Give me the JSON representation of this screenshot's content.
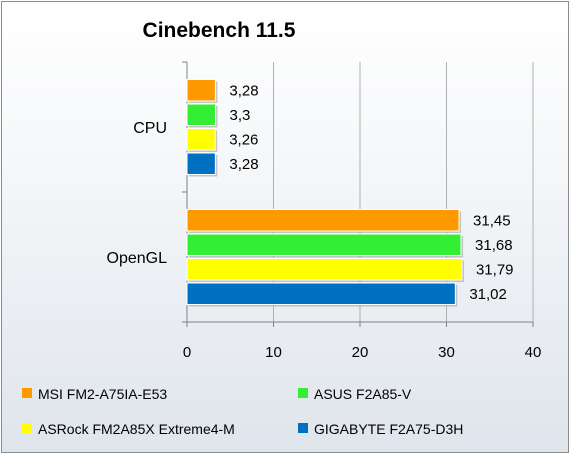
{
  "chart_data": {
    "type": "bar",
    "orientation": "horizontal",
    "title": "Cinebench 11.5",
    "xlabel": "",
    "ylabel": "",
    "categories": [
      "CPU",
      "OpenGL"
    ],
    "series": [
      {
        "name": "MSI FM2-A75IA-E53",
        "color": "#ff9900",
        "values": [
          3.28,
          31.45
        ],
        "labels": [
          "3,28",
          "31,45"
        ]
      },
      {
        "name": "ASUS F2A85-V",
        "color": "#33ee33",
        "values": [
          3.3,
          31.68
        ],
        "labels": [
          "3,3",
          "31,68"
        ]
      },
      {
        "name": "ASRock FM2A85X Extreme4-M",
        "color": "#ffff00",
        "values": [
          3.26,
          31.79
        ],
        "labels": [
          "3,26",
          "31,79"
        ]
      },
      {
        "name": "GIGABYTE F2A75-D3H",
        "color": "#0070c0",
        "values": [
          3.28,
          31.02
        ],
        "labels": [
          "3,28",
          "31,02"
        ]
      }
    ],
    "xlim": [
      0,
      40
    ],
    "xticks": [
      0,
      10,
      20,
      30,
      40
    ],
    "xtick_labels": [
      "0",
      "10",
      "20",
      "30",
      "40"
    ],
    "grid": true,
    "legend_position": "bottom"
  }
}
